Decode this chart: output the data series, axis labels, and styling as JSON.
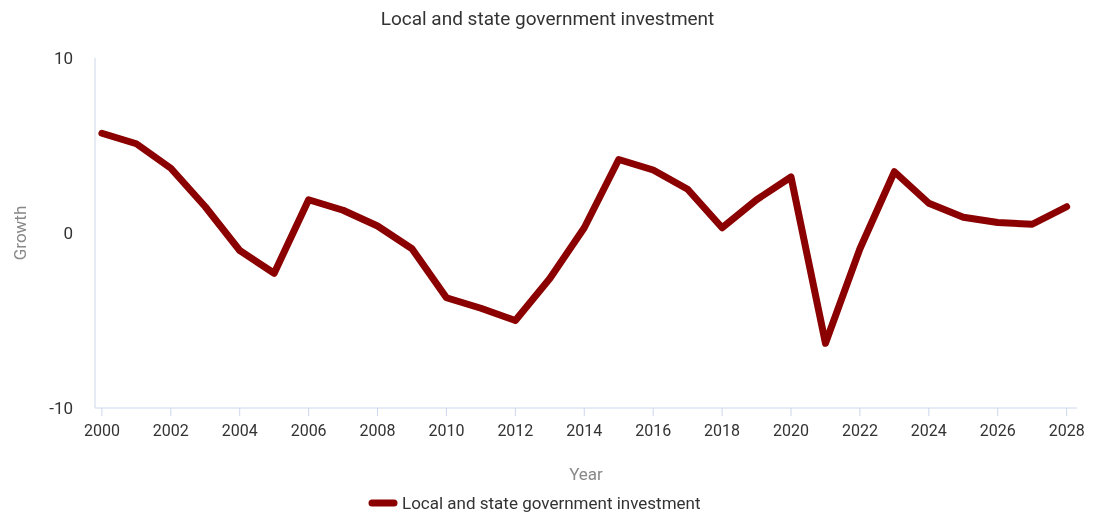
{
  "chart_data": {
    "type": "line",
    "title": "Local and state government investment",
    "xlabel": "Year",
    "ylabel": "Growth",
    "x": [
      2000,
      2001,
      2002,
      2003,
      2004,
      2005,
      2006,
      2007,
      2008,
      2009,
      2010,
      2011,
      2012,
      2013,
      2014,
      2015,
      2016,
      2017,
      2018,
      2019,
      2020,
      2021,
      2022,
      2023,
      2024,
      2025,
      2026,
      2027,
      2028
    ],
    "series": [
      {
        "name": "Local and state government investment",
        "color": "#8b0000",
        "values": [
          5.7,
          5.1,
          3.7,
          1.5,
          -1.0,
          -2.3,
          1.9,
          1.3,
          0.4,
          -0.9,
          -3.7,
          -4.3,
          -5.0,
          -2.6,
          0.3,
          4.2,
          3.6,
          2.5,
          0.3,
          1.9,
          3.2,
          -6.3,
          -0.9,
          3.5,
          1.7,
          0.9,
          0.6,
          0.5,
          1.5
        ]
      }
    ],
    "xlim": [
      1999.8,
      2028.3
    ],
    "xticks": [
      2000,
      2002,
      2004,
      2006,
      2008,
      2010,
      2012,
      2014,
      2016,
      2018,
      2020,
      2022,
      2024,
      2026,
      2028
    ],
    "ylim": [
      -10,
      10
    ],
    "yticks": [
      -10,
      0,
      10
    ],
    "legend": "bottom",
    "grid": false,
    "marker": "none",
    "line_style": "solid"
  }
}
